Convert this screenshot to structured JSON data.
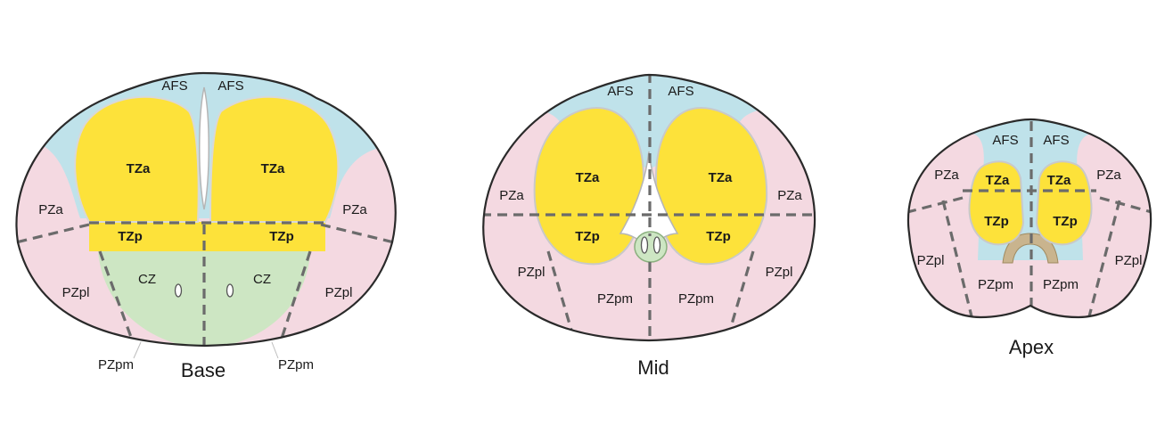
{
  "colors": {
    "pz": "#f4d9e1",
    "afs": "#bfe2ea",
    "tz": "#fde23a",
    "cz": "#cde6c3",
    "outline": "#2a2a2a",
    "divider": "#6b6b6b",
    "urethra_ring": "#c9b48e"
  },
  "base": {
    "caption": "Base",
    "afs_left": "AFS",
    "afs_right": "AFS",
    "tza_left": "TZa",
    "tza_right": "TZa",
    "tzp_left": "TZp",
    "tzp_right": "TZp",
    "cz_left": "CZ",
    "cz_right": "CZ",
    "pza_left": "PZa",
    "pza_right": "PZa",
    "pzpl_left": "PZpl",
    "pzpl_right": "PZpl",
    "pzpm_left": "PZpm",
    "pzpm_right": "PZpm"
  },
  "mid": {
    "caption": "Mid",
    "afs_left": "AFS",
    "afs_right": "AFS",
    "tza_left": "TZa",
    "tza_right": "TZa",
    "tzp_left": "TZp",
    "tzp_right": "TZp",
    "pza_left": "PZa",
    "pza_right": "PZa",
    "pzpl_left": "PZpl",
    "pzpl_right": "PZpl",
    "pzpm_left": "PZpm",
    "pzpm_right": "PZpm"
  },
  "apex": {
    "caption": "Apex",
    "afs_left": "AFS",
    "afs_right": "AFS",
    "tza_left": "TZa",
    "tza_right": "TZa",
    "tzp_left": "TZp",
    "tzp_right": "TZp",
    "pza_left": "PZa",
    "pza_right": "PZa",
    "pzpl_left": "PZpl",
    "pzpl_right": "PZpl",
    "pzpm_left": "PZpm",
    "pzpm_right": "PZpm"
  }
}
